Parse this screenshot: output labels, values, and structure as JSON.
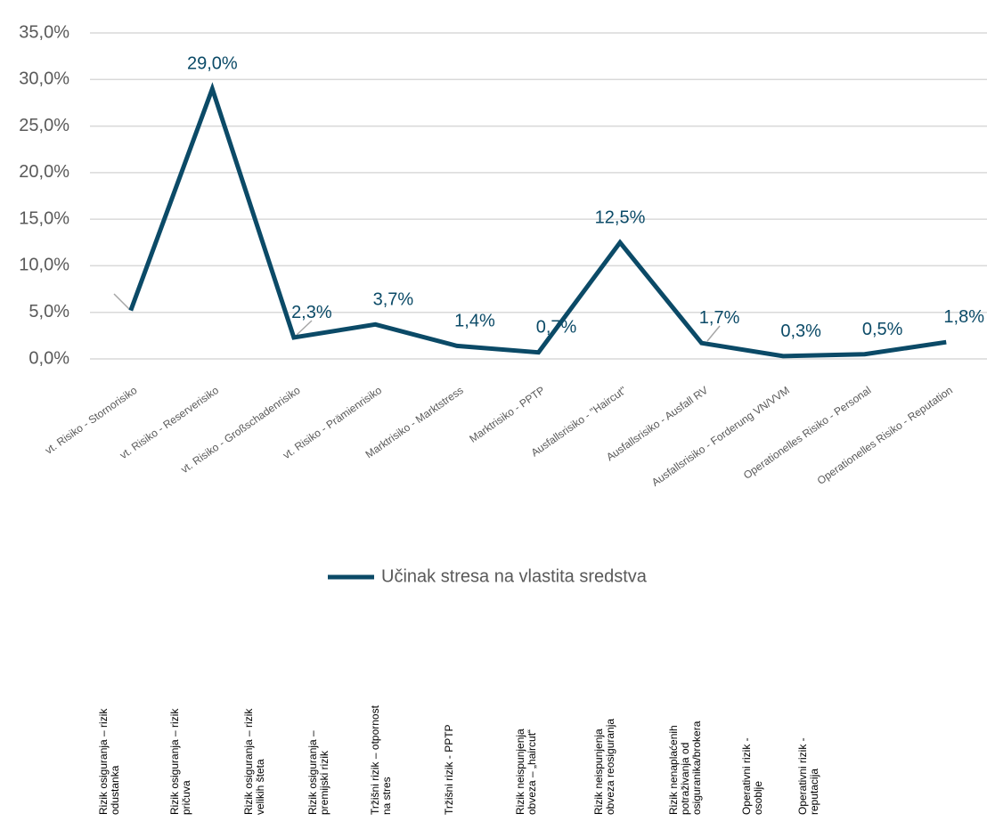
{
  "chart_data": {
    "type": "line",
    "categories": [
      "vt. Risiko - Stornorisiko",
      "vt. Risiko - Reserverisiko",
      "vt. Risiko - Großschadenrisiko",
      "vt. Risiko - Prämienrisiko",
      "Marktrisiko - Marktstress",
      "Marktrisiko - PPTP",
      "Ausfallsrisiko - \"Haircut\"",
      "Ausfallsrisiko - Ausfall RV",
      "Ausfallsrisiko - Forderung VN/VVM",
      "Operationelles Risiko - Personal",
      "Operationelles Risiko - Reputation"
    ],
    "series": [
      {
        "name": "Učinak stresa na vlastita sredstva",
        "color": "#0b4a67",
        "values": [
          5.2,
          29.0,
          2.3,
          3.7,
          1.4,
          0.7,
          12.5,
          1.7,
          0.3,
          0.5,
          1.8
        ],
        "value_labels": [
          null,
          "29,0%",
          "2,3%",
          "3,7%",
          "1,4%",
          "0,7%",
          "12,5%",
          "1,7%",
          "0,3%",
          "0,5%",
          "1,8%"
        ]
      }
    ],
    "ylim": [
      0,
      35
    ],
    "yticks": [
      {
        "value": 0,
        "label": "0,0%"
      },
      {
        "value": 5,
        "label": "5,0%"
      },
      {
        "value": 10,
        "label": "10,0%"
      },
      {
        "value": 15,
        "label": "15,0%"
      },
      {
        "value": 20,
        "label": "20,0%"
      },
      {
        "value": 25,
        "label": "25,0%"
      },
      {
        "value": 30,
        "label": "30,0%"
      },
      {
        "value": 35,
        "label": "35,0%"
      }
    ],
    "grid": true,
    "legend": "bottom"
  },
  "bottom_labels": [
    [
      "Rizik osiguranja – rizik",
      "odustanka"
    ],
    [
      "Rizik osiguranja – rizik",
      "pričuva"
    ],
    [
      "Rizik osiguranja – rizik",
      "velikih šteta"
    ],
    [
      "Rizik osiguranja –",
      "premijski rizik"
    ],
    [
      "Tržišni rizik – otpornost",
      "na stres"
    ],
    [
      "Tržišni rizik - PPTP"
    ],
    [
      "Rizik neispunjenja",
      "obveza – „haircut“"
    ],
    [
      "Rizik neispunjenja",
      "obveza reosiguranja"
    ],
    [
      "Rizik nenaplaćenih",
      "potraživanja od",
      "osiguranika/brokera"
    ],
    [
      "Operativni rizik -",
      "osoblje"
    ],
    [
      "Operativni rizik -",
      "reputacija"
    ]
  ]
}
